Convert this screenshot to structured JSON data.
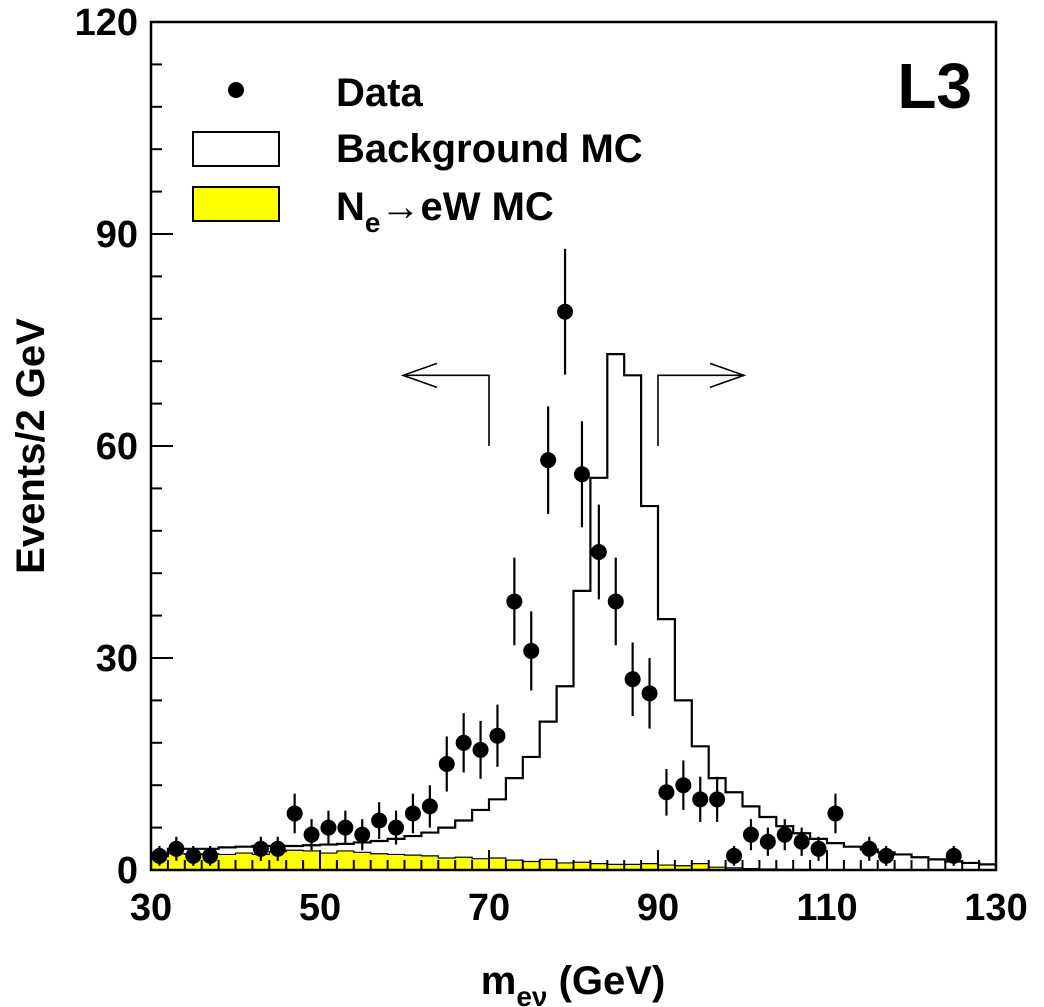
{
  "chart_data": {
    "type": "histogram",
    "badge": "L3",
    "xlabel": {
      "main": "m",
      "sub": "eν",
      "unit": " (GeV)"
    },
    "ylabel": "Events/2 GeV",
    "xlim": [
      30,
      130
    ],
    "ylim": [
      0,
      120
    ],
    "xticks": [
      30,
      50,
      70,
      90,
      110,
      130
    ],
    "yticks": [
      0,
      30,
      60,
      90,
      120
    ],
    "x_minor_step": 2,
    "y_minor_step": 6,
    "colors": {
      "signal_fill": "#ffff00",
      "line": "#000000",
      "background": "#ffffff"
    },
    "legend": {
      "data": "Data",
      "background": "Background MC",
      "signal": {
        "pre": "N",
        "sub": "e",
        "arrow": "→",
        "post": "eW MC"
      }
    },
    "cut_markers": [
      {
        "x": 70,
        "direction": "left",
        "y_start": 60,
        "y_top": 70
      },
      {
        "x": 90,
        "direction": "right",
        "y_start": 60,
        "y_top": 70
      }
    ],
    "series": [
      {
        "name": "Background MC",
        "kind": "step",
        "bin_width": 2,
        "bin_edges_start": 30,
        "values": [
          2,
          3,
          3,
          3,
          3.2,
          3.3,
          3.4,
          3.4,
          3.4,
          3.5,
          3.6,
          3.7,
          3.9,
          4.1,
          4.4,
          4.8,
          5.3,
          6,
          7,
          8.5,
          10,
          13,
          16,
          21,
          26,
          39.5,
          55.5,
          73,
          70,
          51.5,
          35.5,
          24,
          17.5,
          13,
          11,
          9,
          7.5,
          6.2,
          5.2,
          4.4,
          3.8,
          3.3,
          2.9,
          2.5,
          2.2,
          1.8,
          1.5,
          1.2,
          1,
          0.8
        ]
      },
      {
        "name": "Ne→eW MC",
        "kind": "filled-step",
        "bin_width": 2,
        "bin_edges_start": 30,
        "values": [
          2,
          2.3,
          2.2,
          2.3,
          2.2,
          2.4,
          2.2,
          2.6,
          2.8,
          2.7,
          2.4,
          2.7,
          2.5,
          2.3,
          2.2,
          2.1,
          2.0,
          1.7,
          1.8,
          1.6,
          1.7,
          1.4,
          1.2,
          1.5,
          1.0,
          1.1,
          0.9,
          0.8,
          0.8,
          0.9,
          0.7,
          0.6,
          0.9,
          0.4,
          0.3,
          0.2,
          0.15,
          0.1,
          0.08,
          0.05,
          0.04,
          0.03,
          0.02,
          0.01,
          0.01,
          0,
          0,
          0,
          0,
          0
        ]
      },
      {
        "name": "Data",
        "kind": "points",
        "x": [
          31,
          33,
          35,
          37,
          43,
          45,
          47,
          49,
          51,
          53,
          55,
          57,
          59,
          61,
          63,
          65,
          67,
          69,
          71,
          73,
          75,
          77,
          79,
          81,
          83,
          85,
          87,
          89,
          91,
          93,
          95,
          97,
          99,
          101,
          103,
          105,
          107,
          109,
          111,
          115,
          117,
          125
        ],
        "y": [
          2,
          3,
          2,
          2,
          3,
          3,
          8,
          5,
          6,
          6,
          5,
          7,
          6,
          8,
          9,
          15,
          18,
          17,
          19,
          38,
          31,
          58,
          79,
          56,
          45,
          38,
          27,
          25,
          11,
          12,
          10,
          10,
          2,
          5,
          4,
          5,
          4,
          3,
          8,
          3,
          2,
          2
        ],
        "err": [
          1.4,
          1.7,
          1.4,
          1.4,
          1.7,
          1.7,
          2.8,
          2.2,
          2.4,
          2.4,
          2.2,
          2.6,
          2.4,
          2.8,
          3.0,
          3.9,
          4.2,
          4.1,
          4.4,
          6.2,
          5.6,
          7.6,
          8.9,
          7.5,
          6.7,
          6.2,
          5.2,
          5.0,
          3.3,
          3.5,
          3.2,
          3.2,
          1.4,
          2.2,
          2.0,
          2.2,
          2.0,
          1.7,
          2.8,
          1.7,
          1.4,
          1.4
        ]
      }
    ]
  }
}
